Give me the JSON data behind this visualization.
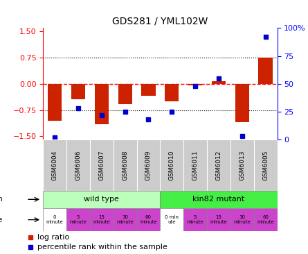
{
  "title": "GDS281 / YML102W",
  "samples": [
    "GSM6004",
    "GSM6006",
    "GSM6007",
    "GSM6008",
    "GSM6009",
    "GSM6010",
    "GSM6011",
    "GSM6012",
    "GSM6013",
    "GSM6005"
  ],
  "log_ratio": [
    -1.05,
    -0.45,
    -1.15,
    -0.58,
    -0.35,
    -0.5,
    -0.05,
    0.08,
    -1.1,
    0.75
  ],
  "percentile": [
    2,
    28,
    22,
    25,
    18,
    25,
    48,
    55,
    3,
    92
  ],
  "ylim_left": [
    -1.6,
    1.6
  ],
  "ylim_right": [
    0,
    100
  ],
  "yticks_left": [
    -1.5,
    -0.75,
    0,
    0.75,
    1.5
  ],
  "yticks_right": [
    0,
    25,
    50,
    75,
    100
  ],
  "ytick_labels_right": [
    "0",
    "25",
    "50",
    "75",
    "100%"
  ],
  "hlines": [
    -0.75,
    0,
    0.75
  ],
  "hline_styles": [
    "dotted",
    "dashed",
    "dotted"
  ],
  "hline_colors": [
    "black",
    "red",
    "black"
  ],
  "bar_color": "#cc2200",
  "dot_color": "#0000cc",
  "strain_wild_label": "wild type",
  "strain_wild_color": "#bbffbb",
  "strain_kin82_label": "kin82 mutant",
  "strain_kin82_color": "#44ee44",
  "time_labels": [
    "0\nminute",
    "5\nminute",
    "15\nminute",
    "30\nminute",
    "60\nminute",
    "0 min\nute",
    "5\nminute",
    "15\nminute",
    "30\nminute",
    "60\nminute"
  ],
  "time_col_colors": [
    "#ffffff",
    "#cc44cc",
    "#cc44cc",
    "#cc44cc",
    "#cc44cc",
    "#ffffff",
    "#cc44cc",
    "#cc44cc",
    "#cc44cc",
    "#cc44cc"
  ],
  "sample_bg_color": "#cccccc",
  "legend_log_ratio": "log ratio",
  "legend_percentile": "percentile rank within the sample"
}
